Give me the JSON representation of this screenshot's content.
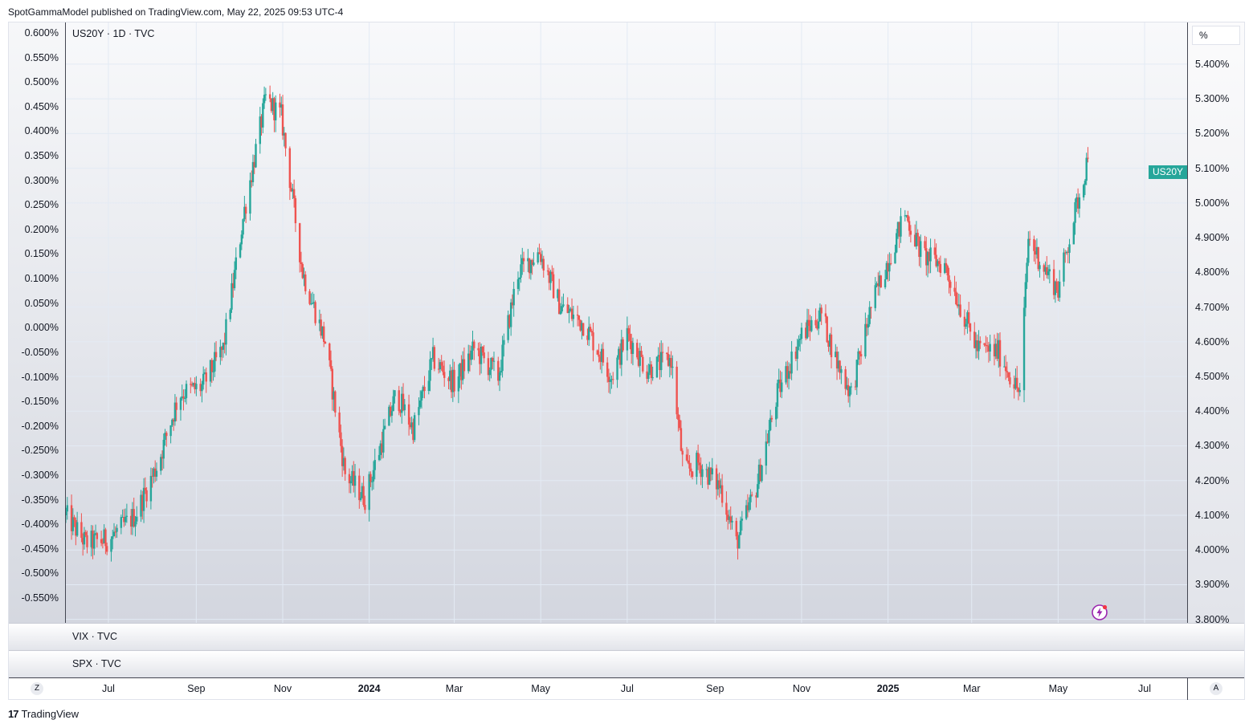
{
  "header": {
    "published": "SpotGammaModel published on TradingView.com, May 22, 2025 09:53 UTC-4"
  },
  "main_pane": {
    "legend": "US20Y · 1D · TVC",
    "unit_label": "%",
    "last_price_label": "US20Y",
    "icon": "flash-icon"
  },
  "sub_panes": [
    {
      "legend": "VIX · TVC"
    },
    {
      "legend": "SPX · TVC"
    }
  ],
  "time_axis": {
    "left_button": "Z",
    "right_button": "A",
    "ticks": [
      {
        "label": "Jul",
        "bold": false
      },
      {
        "label": "Sep",
        "bold": false
      },
      {
        "label": "Nov",
        "bold": false
      },
      {
        "label": "2024",
        "bold": true
      },
      {
        "label": "Mar",
        "bold": false
      },
      {
        "label": "May",
        "bold": false
      },
      {
        "label": "Jul",
        "bold": false
      },
      {
        "label": "Sep",
        "bold": false
      },
      {
        "label": "Nov",
        "bold": false
      },
      {
        "label": "2025",
        "bold": true
      },
      {
        "label": "Mar",
        "bold": false
      },
      {
        "label": "May",
        "bold": false
      },
      {
        "label": "Jul",
        "bold": false
      }
    ]
  },
  "footer": {
    "brand": "TradingView",
    "logo_mark": "17"
  },
  "colors": {
    "up": "#26a69a",
    "down": "#ef5350",
    "grid": "#e3eaf4"
  },
  "chart_data": {
    "type": "candlestick",
    "symbol": "US20Y",
    "interval": "1D",
    "right_axis": {
      "unit": "%",
      "ticks": [
        "5.400%",
        "5.300%",
        "5.200%",
        "5.100%",
        "5.000%",
        "4.900%",
        "4.800%",
        "4.700%",
        "4.600%",
        "4.500%",
        "4.400%",
        "4.300%",
        "4.200%",
        "4.100%",
        "4.000%",
        "3.900%",
        "3.800%"
      ],
      "ylim": [
        3.79,
        5.52
      ]
    },
    "left_axis": {
      "ticks": [
        "0.600%",
        "0.550%",
        "0.500%",
        "0.450%",
        "0.400%",
        "0.350%",
        "0.300%",
        "0.250%",
        "0.200%",
        "0.150%",
        "0.100%",
        "0.050%",
        "0.000%",
        "-0.050%",
        "-0.100%",
        "-0.150%",
        "-0.200%",
        "-0.250%",
        "-0.300%",
        "-0.350%",
        "-0.400%",
        "-0.450%",
        "-0.500%",
        "-0.550%"
      ]
    },
    "x_range": [
      "2023-06-01",
      "2025-07-31"
    ],
    "last_value": 5.13,
    "path_waypoints": [
      [
        "2023-06-01",
        4.1
      ],
      [
        "2023-06-15",
        4.02
      ],
      [
        "2023-07-01",
        4.03
      ],
      [
        "2023-07-20",
        4.1
      ],
      [
        "2023-08-05",
        4.25
      ],
      [
        "2023-08-20",
        4.45
      ],
      [
        "2023-09-05",
        4.47
      ],
      [
        "2023-09-20",
        4.58
      ],
      [
        "2023-10-05",
        4.98
      ],
      [
        "2023-10-20",
        5.3
      ],
      [
        "2023-10-31",
        5.25
      ],
      [
        "2023-11-15",
        4.8
      ],
      [
        "2023-12-01",
        4.6
      ],
      [
        "2023-12-15",
        4.22
      ],
      [
        "2023-12-29",
        4.15
      ],
      [
        "2024-01-20",
        4.45
      ],
      [
        "2024-02-01",
        4.35
      ],
      [
        "2024-02-15",
        4.55
      ],
      [
        "2024-03-01",
        4.48
      ],
      [
        "2024-03-15",
        4.58
      ],
      [
        "2024-04-01",
        4.5
      ],
      [
        "2024-04-15",
        4.8
      ],
      [
        "2024-04-30",
        4.86
      ],
      [
        "2024-05-15",
        4.7
      ],
      [
        "2024-06-01",
        4.65
      ],
      [
        "2024-06-20",
        4.5
      ],
      [
        "2024-07-01",
        4.62
      ],
      [
        "2024-07-15",
        4.52
      ],
      [
        "2024-08-01",
        4.55
      ],
      [
        "2024-08-10",
        4.22
      ],
      [
        "2024-08-20",
        4.25
      ],
      [
        "2024-09-05",
        4.18
      ],
      [
        "2024-09-16",
        4.02
      ],
      [
        "2024-09-30",
        4.18
      ],
      [
        "2024-10-15",
        4.45
      ],
      [
        "2024-11-01",
        4.62
      ],
      [
        "2024-11-15",
        4.68
      ],
      [
        "2024-11-25",
        4.55
      ],
      [
        "2024-12-06",
        4.45
      ],
      [
        "2024-12-20",
        4.7
      ],
      [
        "2025-01-13",
        4.97
      ],
      [
        "2025-01-25",
        4.85
      ],
      [
        "2025-02-10",
        4.82
      ],
      [
        "2025-02-25",
        4.66
      ],
      [
        "2025-03-05",
        4.58
      ],
      [
        "2025-03-20",
        4.57
      ],
      [
        "2025-04-04",
        4.45
      ],
      [
        "2025-04-10",
        4.9
      ],
      [
        "2025-04-20",
        4.82
      ],
      [
        "2025-05-01",
        4.75
      ],
      [
        "2025-05-10",
        4.92
      ],
      [
        "2025-05-22",
        5.13
      ]
    ]
  }
}
